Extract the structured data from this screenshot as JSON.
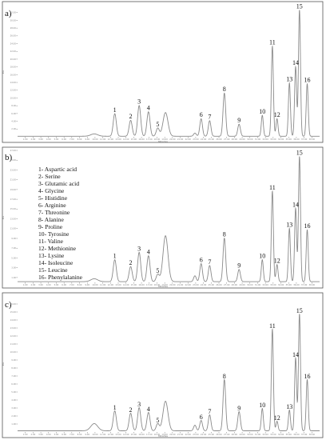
{
  "chart_data": [
    {
      "type": "line",
      "panel": "a)",
      "xlabel": "Minutes",
      "ylabel": "EU",
      "xlim": [
        0,
        39
      ],
      "x_ticks": [
        "1.00",
        "2.00",
        "3.00",
        "4.00",
        "5.00",
        "6.00",
        "7.00",
        "8.00",
        "9.00",
        "10.00",
        "11.00",
        "12.00",
        "13.00",
        "14.00",
        "15.00",
        "16.00",
        "17.00",
        "18.00",
        "19.00",
        "20.00",
        "21.00",
        "22.00",
        "23.00",
        "24.00",
        "25.00",
        "26.00",
        "27.00",
        "28.00",
        "29.00",
        "30.00",
        "31.00",
        "32.00",
        "33.00",
        "34.00",
        "35.00",
        "36.00",
        "37.00",
        "38.00"
      ],
      "ylim": [
        0,
        34
      ],
      "y_ticks": [
        "2.00",
        "4.00",
        "6.00",
        "8.00",
        "10.00",
        "12.00",
        "14.00",
        "16.00",
        "18.00",
        "20.00",
        "22.00",
        "24.00",
        "26.00",
        "28.00",
        "30.00",
        "32.00"
      ],
      "peaks": [
        {
          "label": "1",
          "x": 12.55,
          "y": 5.8
        },
        {
          "label": "2",
          "x": 14.6,
          "y": 4.1
        },
        {
          "label": "3",
          "x": 15.7,
          "y": 7.9
        },
        {
          "label": "4",
          "x": 16.9,
          "y": 6.3
        },
        {
          "label": "5",
          "x": 18.1,
          "y": 2.1
        },
        {
          "label": "6",
          "x": 23.7,
          "y": 4.5
        },
        {
          "label": "7",
          "x": 24.8,
          "y": 4.0
        },
        {
          "label": "8",
          "x": 26.7,
          "y": 11.1
        },
        {
          "label": "9",
          "x": 28.6,
          "y": 3.1
        },
        {
          "label": "10",
          "x": 31.6,
          "y": 5.4
        },
        {
          "label": "11",
          "x": 32.9,
          "y": 23.2
        },
        {
          "label": "12",
          "x": 33.5,
          "y": 4.5
        },
        {
          "label": "13",
          "x": 35.1,
          "y": 13.7
        },
        {
          "label": "14",
          "x": 35.9,
          "y": 17.9
        },
        {
          "label": "15",
          "x": 36.4,
          "y": 32.5
        },
        {
          "label": "16",
          "x": 37.4,
          "y": 13.5
        }
      ],
      "other_peaks": [
        {
          "x": 9.9,
          "y": 0.6
        },
        {
          "x": 19.1,
          "y": 6.1
        },
        {
          "x": 22.9,
          "y": 0.8
        }
      ]
    },
    {
      "type": "line",
      "panel": "b)",
      "xlabel": "Minutes",
      "ylabel": "EU",
      "xlim": [
        0,
        39
      ],
      "x_ticks": [
        "1.00",
        "2.00",
        "3.00",
        "4.00",
        "5.00",
        "6.00",
        "7.00",
        "8.00",
        "9.00",
        "10.00",
        "11.00",
        "12.00",
        "13.00",
        "14.00",
        "15.00",
        "16.00",
        "17.00",
        "18.00",
        "19.00",
        "20.00",
        "21.00",
        "22.00",
        "23.00",
        "24.00",
        "25.00",
        "26.00",
        "27.00",
        "28.00",
        "29.00",
        "30.00",
        "31.00",
        "32.00",
        "33.00",
        "34.00",
        "35.00",
        "36.00",
        "37.00",
        "38.00"
      ],
      "ylim": [
        0,
        27
      ],
      "y_ticks": [
        "1.00",
        "3.00",
        "5.00",
        "7.00",
        "9.00",
        "11.00",
        "13.00",
        "15.00",
        "17.00",
        "19.00",
        "21.00",
        "23.00",
        "25.00",
        "27.00"
      ],
      "peaks": [
        {
          "label": "1",
          "x": 12.55,
          "y": 4.5
        },
        {
          "label": "2",
          "x": 14.6,
          "y": 3.1
        },
        {
          "label": "3",
          "x": 15.7,
          "y": 6.0
        },
        {
          "label": "4",
          "x": 16.9,
          "y": 5.3
        },
        {
          "label": "5",
          "x": 18.1,
          "y": 1.5
        },
        {
          "label": "6",
          "x": 23.7,
          "y": 3.7
        },
        {
          "label": "7",
          "x": 24.8,
          "y": 3.3
        },
        {
          "label": "8",
          "x": 26.7,
          "y": 8.9
        },
        {
          "label": "9",
          "x": 28.6,
          "y": 2.5
        },
        {
          "label": "10",
          "x": 31.6,
          "y": 4.5
        },
        {
          "label": "11",
          "x": 32.9,
          "y": 18.5
        },
        {
          "label": "12",
          "x": 33.5,
          "y": 3.5
        },
        {
          "label": "13",
          "x": 35.1,
          "y": 10.9
        },
        {
          "label": "14",
          "x": 35.9,
          "y": 15.0
        },
        {
          "label": "15",
          "x": 36.4,
          "y": 25.6
        },
        {
          "label": "16",
          "x": 37.4,
          "y": 10.6
        }
      ],
      "other_peaks": [
        {
          "x": 9.9,
          "y": 0.6
        },
        {
          "x": 19.1,
          "y": 9.4
        },
        {
          "x": 22.9,
          "y": 1.2
        }
      ],
      "legend": [
        "1- Aspartic acid",
        "2- Serine",
        "3- Glutamic acid",
        "4- Glycine",
        "5- Histidine",
        "6- Arginine",
        "7- Threonine",
        "8- Alanine",
        "9- Proline",
        "10- Tyrosine",
        "11- Valine",
        "12- Methionine",
        "13- Lysine",
        "14- Isoleucine",
        "15- Leucine",
        "16- Phenylalanine"
      ]
    },
    {
      "type": "line",
      "panel": "c)",
      "xlabel": "Minutes",
      "ylabel": "EU",
      "xlim": [
        0,
        39
      ],
      "x_ticks": [
        "1.00",
        "2.00",
        "3.00",
        "4.00",
        "5.00",
        "6.00",
        "7.00",
        "8.00",
        "9.00",
        "10.00",
        "11.00",
        "12.00",
        "13.00",
        "14.00",
        "15.00",
        "16.00",
        "17.00",
        "18.00",
        "19.00",
        "20.00",
        "21.00",
        "22.00",
        "23.00",
        "24.00",
        "25.00",
        "26.00",
        "27.00",
        "28.00",
        "29.00",
        "30.00",
        "31.00",
        "32.00",
        "33.00",
        "34.00",
        "35.00",
        "36.00",
        "37.00",
        "38.00"
      ],
      "ylim": [
        0,
        17
      ],
      "y_ticks": [
        "1.00",
        "2.00",
        "3.00",
        "4.00",
        "5.00",
        "6.00",
        "7.00",
        "8.00",
        "9.00",
        "10.00",
        "11.00",
        "12.00",
        "13.00",
        "14.00",
        "15.00",
        "16.00"
      ],
      "peaks": [
        {
          "label": "1",
          "x": 12.55,
          "y": 2.5
        },
        {
          "label": "2",
          "x": 14.6,
          "y": 2.2
        },
        {
          "label": "3",
          "x": 15.7,
          "y": 2.9
        },
        {
          "label": "4",
          "x": 16.9,
          "y": 2.3
        },
        {
          "label": "5",
          "x": 18.1,
          "y": 0.9
        },
        {
          "label": "6",
          "x": 23.7,
          "y": 1.3
        },
        {
          "label": "7",
          "x": 24.8,
          "y": 2.0
        },
        {
          "label": "8",
          "x": 26.7,
          "y": 6.4
        },
        {
          "label": "9",
          "x": 28.6,
          "y": 2.4
        },
        {
          "label": "10",
          "x": 31.6,
          "y": 2.8
        },
        {
          "label": "11",
          "x": 32.9,
          "y": 12.7
        },
        {
          "label": "12",
          "x": 33.5,
          "y": 1.2
        },
        {
          "label": "13",
          "x": 35.1,
          "y": 2.6
        },
        {
          "label": "14",
          "x": 35.9,
          "y": 9.1
        },
        {
          "label": "15",
          "x": 36.4,
          "y": 14.6
        },
        {
          "label": "16",
          "x": 37.4,
          "y": 6.4
        }
      ],
      "other_peaks": [
        {
          "x": 9.9,
          "y": 0.9
        },
        {
          "x": 19.1,
          "y": 3.7
        },
        {
          "x": 22.9,
          "y": 0.7
        }
      ]
    }
  ]
}
